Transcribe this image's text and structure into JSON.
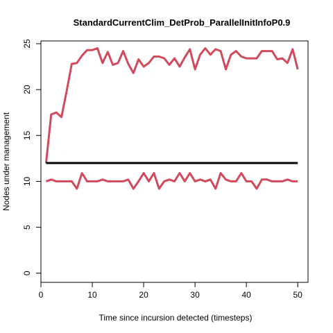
{
  "chart_data": {
    "type": "line",
    "title": "StandardCurrentClim_DetProb_ParallelInitInfoP0.9",
    "xlabel": "Time since incursion detected (timesteps)",
    "ylabel": "Nodes under management",
    "xlim": [
      0,
      52
    ],
    "ylim": [
      -1,
      25.3
    ],
    "xticks": [
      0,
      10,
      20,
      30,
      40,
      50
    ],
    "yticks": [
      0,
      5,
      10,
      15,
      20,
      25
    ],
    "grid": false,
    "series": [
      {
        "color": "#d1495b",
        "x": [
          1,
          2,
          3,
          4,
          5,
          6,
          7,
          8,
          9,
          10,
          11,
          12,
          13,
          14,
          15,
          16,
          17,
          18,
          19,
          20,
          21,
          22,
          23,
          24,
          25,
          26,
          27,
          28,
          29,
          30,
          31,
          32,
          33,
          34,
          35,
          36,
          37,
          38,
          39,
          40,
          41,
          42,
          43,
          44,
          45,
          46,
          47,
          48,
          49,
          50
        ],
        "values": [
          12,
          17.3,
          17.5,
          17.0,
          19.8,
          22.8,
          22.9,
          23.7,
          24.3,
          24.3,
          24.5,
          22.9,
          24.1,
          22.7,
          22.9,
          24.2,
          22.8,
          21.8,
          23.3,
          22.5,
          22.9,
          23.6,
          23.6,
          23.4,
          22.7,
          23.4,
          22.5,
          23.5,
          24.4,
          22.2,
          23.8,
          24.5,
          23.8,
          24.4,
          24.2,
          22.2,
          23.8,
          24.2,
          23.6,
          23.4,
          23.4,
          23.4,
          24.2,
          24.2,
          24.2,
          23.3,
          23.4,
          22.9,
          24.4,
          22.2
        ]
      },
      {
        "color": "#000000",
        "x": [
          1,
          50
        ],
        "values": [
          12,
          12
        ]
      },
      {
        "color": "#d1495b",
        "x": [
          1,
          2,
          3,
          4,
          5,
          6,
          7,
          8,
          9,
          10,
          11,
          12,
          13,
          14,
          15,
          16,
          17,
          18,
          19,
          20,
          21,
          22,
          23,
          24,
          25,
          26,
          27,
          28,
          29,
          30,
          31,
          32,
          33,
          34,
          35,
          36,
          37,
          38,
          39,
          40,
          41,
          42,
          43,
          44,
          45,
          46,
          47,
          48,
          49,
          50
        ],
        "values": [
          10,
          10.2,
          10,
          10,
          10,
          10,
          9.2,
          10.9,
          10,
          10,
          10,
          10.2,
          10,
          10,
          10,
          10,
          10.2,
          9.2,
          10,
          10.9,
          10,
          10.9,
          9.2,
          10,
          10.2,
          10,
          10.9,
          10,
          10.9,
          10,
          10.2,
          10,
          10.2,
          9.2,
          10.9,
          10.2,
          10,
          10,
          10.9,
          10,
          10,
          9.2,
          10.2,
          10.2,
          10,
          10,
          10,
          10.2,
          10,
          10
        ]
      }
    ]
  }
}
